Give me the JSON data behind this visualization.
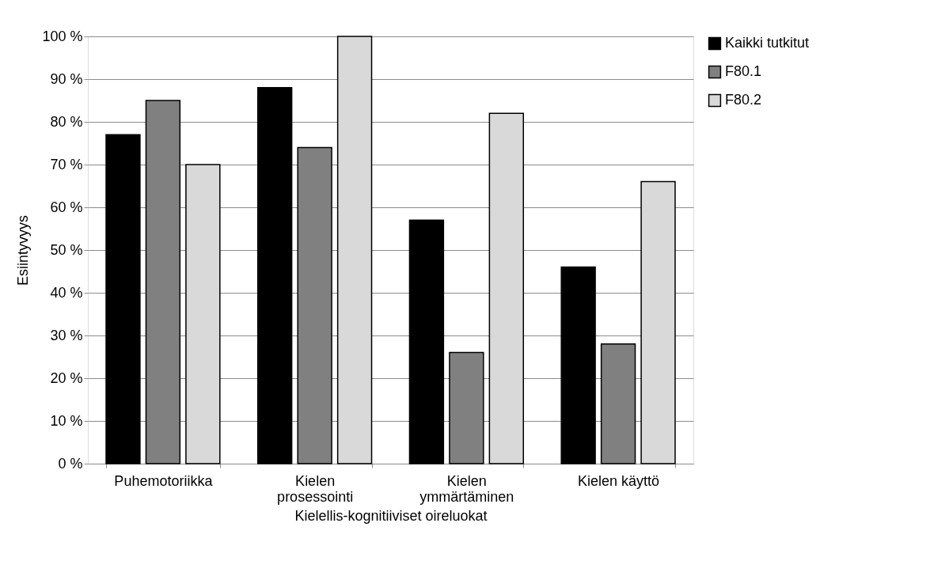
{
  "chart_data": {
    "type": "bar",
    "xlabel": "Kielellis-kognitiiviset oireluokat",
    "ylabel": "Esiintyvyys",
    "categories": [
      "Puhemotoriikka",
      "Kielen prosessointi",
      "Kielen ymmärtäminen",
      "Kielen käyttö"
    ],
    "series": [
      {
        "name": "Kaikki tutkitut",
        "color": "#000000",
        "values": [
          77,
          88,
          57,
          46
        ]
      },
      {
        "name": "F80.1",
        "color": "#808080",
        "values": [
          85,
          74,
          26,
          28
        ]
      },
      {
        "name": "F80.2",
        "color": "#d9d9d9",
        "values": [
          70,
          100,
          82,
          66
        ]
      }
    ],
    "ylim": [
      0,
      100
    ],
    "yticks": [
      {
        "value": 0,
        "label": "0 %"
      },
      {
        "value": 10,
        "label": "10 %"
      },
      {
        "value": 20,
        "label": "20 %"
      },
      {
        "value": 30,
        "label": "30 %"
      },
      {
        "value": 40,
        "label": "40 %"
      },
      {
        "value": 50,
        "label": "50 %"
      },
      {
        "value": 60,
        "label": "60 %"
      },
      {
        "value": 70,
        "label": "70 %"
      },
      {
        "value": 80,
        "label": "80 %"
      },
      {
        "value": 90,
        "label": "90 %"
      },
      {
        "value": 100,
        "label": "100 %"
      }
    ],
    "grid": "y",
    "legend": "right"
  }
}
